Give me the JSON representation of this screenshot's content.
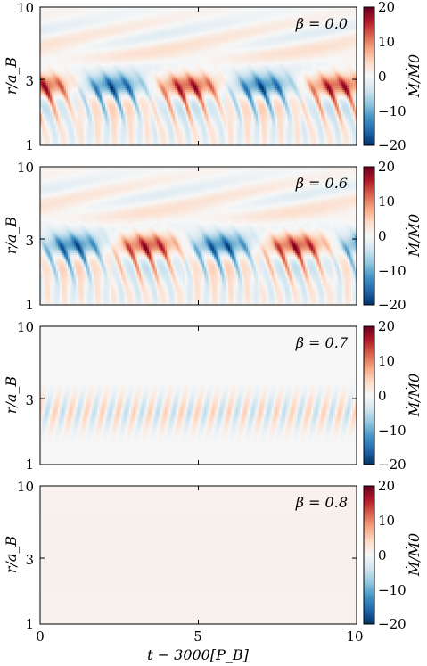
{
  "chart_data": [
    {
      "type": "heatmap",
      "annotation": "β = 0.0",
      "xlabel": "t − 3000[P_B]",
      "ylabel": "r/a_B",
      "xlim": [
        0,
        10
      ],
      "ylim": [
        1,
        10
      ],
      "yscale": "log",
      "xticks": [
        "0",
        "5",
        "10"
      ],
      "yticks": [
        "1",
        "3",
        "10"
      ],
      "colorbar": {
        "label": "Ṁ/Ṁ0",
        "range": [
          -20,
          20
        ],
        "ticks": [
          "20",
          "10",
          "0",
          "−10",
          "−20"
        ],
        "colormap": "RdBu_r"
      },
      "amplitude": 20
    },
    {
      "type": "heatmap",
      "annotation": "β = 0.6",
      "xlabel": "t − 3000[P_B]",
      "ylabel": "r/a_B",
      "xlim": [
        0,
        10
      ],
      "ylim": [
        1,
        10
      ],
      "yscale": "log",
      "xticks": [
        "0",
        "5",
        "10"
      ],
      "yticks": [
        "1",
        "3",
        "10"
      ],
      "colorbar": {
        "label": "Ṁ/Ṁ0",
        "range": [
          -20,
          20
        ],
        "ticks": [
          "20",
          "10",
          "0",
          "−10",
          "−20"
        ],
        "colormap": "RdBu_r"
      },
      "amplitude": 20
    },
    {
      "type": "heatmap",
      "annotation": "β = 0.7",
      "xlabel": "t − 3000[P_B]",
      "ylabel": "r/a_B",
      "xlim": [
        0,
        10
      ],
      "ylim": [
        1,
        10
      ],
      "yscale": "log",
      "xticks": [
        "0",
        "5",
        "10"
      ],
      "yticks": [
        "1",
        "3",
        "10"
      ],
      "colorbar": {
        "label": "Ṁ/Ṁ0",
        "range": [
          -20,
          20
        ],
        "ticks": [
          "20",
          "10",
          "0",
          "−10",
          "−20"
        ],
        "colormap": "RdBu_r"
      },
      "amplitude": 10
    },
    {
      "type": "heatmap",
      "annotation": "β = 0.8",
      "xlabel": "t − 3000[P_B]",
      "ylabel": "r/a_B",
      "xlim": [
        0,
        10
      ],
      "ylim": [
        1,
        10
      ],
      "yscale": "log",
      "xticks": [
        "0",
        "5",
        "10"
      ],
      "yticks": [
        "1",
        "3",
        "10"
      ],
      "colorbar": {
        "label": "Ṁ/Ṁ0",
        "range": [
          -20,
          20
        ],
        "ticks": [
          "20",
          "10",
          "0",
          "−10",
          "−20"
        ],
        "colormap": "RdBu_r"
      },
      "amplitude": 0.5
    }
  ],
  "labels": {
    "xlabel": "t − 3000[P_B]",
    "ylabel": "r/a_B",
    "cblabel": "Ṁ/Ṁ0",
    "beta": [
      "β = 0.0",
      "β = 0.6",
      "β = 0.7",
      "β = 0.8"
    ]
  },
  "colors": {
    "neg_max": "#053061",
    "zero": "#f7f7f7",
    "pos_max": "#67001f"
  }
}
